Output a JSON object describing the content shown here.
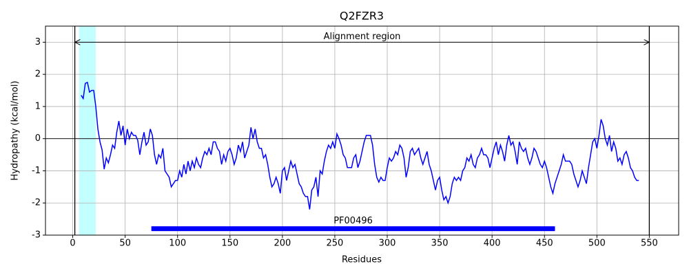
{
  "chart_data": {
    "type": "line",
    "title": "Q2FZR3",
    "xlabel": "Residues",
    "ylabel": "Hydropathy (kcal/mol)",
    "x": [
      8,
      10,
      12,
      14,
      16,
      18,
      20,
      22,
      24,
      26,
      28,
      30,
      32,
      34,
      36,
      38,
      40,
      42,
      44,
      46,
      48,
      50,
      52,
      54,
      56,
      58,
      60,
      62,
      64,
      66,
      68,
      70,
      72,
      74,
      76,
      78,
      80,
      82,
      84,
      86,
      88,
      90,
      92,
      94,
      96,
      98,
      100,
      102,
      104,
      106,
      108,
      110,
      112,
      114,
      116,
      118,
      120,
      122,
      124,
      126,
      128,
      130,
      132,
      134,
      136,
      138,
      140,
      142,
      144,
      146,
      148,
      150,
      152,
      154,
      156,
      158,
      160,
      162,
      164,
      166,
      168,
      170,
      172,
      174,
      176,
      178,
      180,
      182,
      184,
      186,
      188,
      190,
      192,
      194,
      196,
      198,
      200,
      202,
      204,
      206,
      208,
      210,
      212,
      214,
      216,
      218,
      220,
      222,
      224,
      226,
      228,
      230,
      232,
      234,
      236,
      238,
      240,
      242,
      244,
      246,
      248,
      250,
      252,
      254,
      256,
      258,
      260,
      262,
      264,
      266,
      268,
      270,
      272,
      274,
      276,
      278,
      280,
      282,
      284,
      286,
      288,
      290,
      292,
      294,
      296,
      298,
      300,
      302,
      304,
      306,
      308,
      310,
      312,
      314,
      316,
      318,
      320,
      322,
      324,
      326,
      328,
      330,
      332,
      334,
      336,
      338,
      340,
      342,
      344,
      346,
      348,
      350,
      352,
      354,
      356,
      358,
      360,
      362,
      364,
      366,
      368,
      370,
      372,
      374,
      376,
      378,
      380,
      382,
      384,
      386,
      388,
      390,
      392,
      394,
      396,
      398,
      400,
      402,
      404,
      406,
      408,
      410,
      412,
      414,
      416,
      418,
      420,
      422,
      424,
      426,
      428,
      430,
      432,
      434,
      436,
      438,
      440,
      442,
      444,
      446,
      448,
      450,
      452,
      454,
      456,
      458,
      460,
      462,
      464,
      466,
      468,
      470,
      472,
      474,
      476,
      478,
      480,
      482,
      484,
      486,
      488,
      490,
      492,
      494,
      496,
      498,
      500,
      502,
      504,
      506,
      508,
      510,
      512,
      514,
      516,
      518,
      520,
      522,
      524,
      526,
      528,
      530,
      532,
      534,
      536,
      538,
      540
    ],
    "values": [
      1.35,
      1.25,
      1.72,
      1.75,
      1.45,
      1.5,
      1.5,
      1.0,
      0.3,
      -0.1,
      -0.35,
      -0.95,
      -0.6,
      -0.75,
      -0.5,
      -0.2,
      -0.3,
      0.2,
      0.55,
      0.1,
      0.4,
      -0.2,
      0.3,
      0.0,
      0.2,
      0.1,
      0.1,
      -0.05,
      -0.5,
      -0.1,
      0.2,
      -0.2,
      -0.1,
      0.3,
      0.1,
      -0.5,
      -0.8,
      -0.5,
      -0.6,
      -0.3,
      -1.0,
      -1.1,
      -1.2,
      -1.5,
      -1.4,
      -1.3,
      -1.3,
      -1.0,
      -1.2,
      -0.8,
      -1.1,
      -0.7,
      -1.0,
      -0.7,
      -0.9,
      -0.6,
      -0.8,
      -0.9,
      -0.6,
      -0.4,
      -0.5,
      -0.3,
      -0.5,
      -0.1,
      -0.1,
      -0.3,
      -0.4,
      -0.8,
      -0.5,
      -0.7,
      -0.4,
      -0.3,
      -0.5,
      -0.8,
      -0.6,
      -0.2,
      -0.4,
      -0.1,
      -0.6,
      -0.4,
      -0.2,
      0.35,
      0.0,
      0.3,
      -0.1,
      -0.3,
      -0.3,
      -0.6,
      -0.5,
      -0.8,
      -1.2,
      -1.5,
      -1.4,
      -1.2,
      -1.4,
      -1.7,
      -1.0,
      -0.9,
      -1.3,
      -1.0,
      -0.7,
      -0.9,
      -0.8,
      -1.1,
      -1.4,
      -1.5,
      -1.7,
      -1.8,
      -1.8,
      -2.2,
      -1.6,
      -1.5,
      -1.2,
      -1.8,
      -1.0,
      -1.1,
      -0.7,
      -0.4,
      -0.2,
      -0.3,
      -0.1,
      -0.3,
      0.15,
      0.0,
      -0.2,
      -0.5,
      -0.6,
      -0.9,
      -0.9,
      -0.9,
      -0.6,
      -0.5,
      -0.9,
      -0.7,
      -0.4,
      -0.1,
      0.1,
      0.1,
      0.1,
      -0.2,
      -0.8,
      -1.2,
      -1.35,
      -1.2,
      -1.3,
      -1.3,
      -0.9,
      -0.6,
      -0.7,
      -0.6,
      -0.4,
      -0.5,
      -0.2,
      -0.3,
      -0.6,
      -1.2,
      -0.9,
      -0.4,
      -0.3,
      -0.5,
      -0.4,
      -0.3,
      -0.6,
      -0.8,
      -0.6,
      -0.4,
      -0.8,
      -1.0,
      -1.3,
      -1.6,
      -1.3,
      -1.2,
      -1.6,
      -1.9,
      -1.8,
      -2.0,
      -1.8,
      -1.4,
      -1.2,
      -1.3,
      -1.2,
      -1.3,
      -1.0,
      -0.9,
      -0.6,
      -0.7,
      -0.5,
      -0.8,
      -0.9,
      -0.6,
      -0.5,
      -0.3,
      -0.5,
      -0.5,
      -0.6,
      -0.9,
      -0.6,
      -0.3,
      -0.1,
      -0.5,
      -0.2,
      -0.4,
      -0.7,
      -0.2,
      0.1,
      -0.2,
      -0.1,
      -0.4,
      -0.8,
      -0.1,
      -0.3,
      -0.4,
      -0.3,
      -0.6,
      -0.8,
      -0.6,
      -0.3,
      -0.4,
      -0.6,
      -0.8,
      -0.9,
      -0.7,
      -0.9,
      -1.2,
      -1.5,
      -1.7,
      -1.4,
      -1.2,
      -1.0,
      -0.8,
      -0.5,
      -0.7,
      -0.7,
      -0.7,
      -0.8,
      -1.1,
      -1.3,
      -1.5,
      -1.3,
      -1.0,
      -1.2,
      -1.4,
      -0.9,
      -0.5,
      -0.1,
      0.0,
      -0.3,
      0.1,
      0.6,
      0.4,
      0.0,
      -0.2,
      0.1,
      -0.4,
      -0.1,
      -0.3,
      -0.7,
      -0.6,
      -0.8,
      -0.5,
      -0.4,
      -0.6,
      -0.9,
      -1.0,
      -1.2,
      -1.3,
      -1.3
    ],
    "color": "#0000ff",
    "xlim": [
      -26,
      578
    ],
    "ylim": [
      -3,
      3.5
    ],
    "xticks": [
      0,
      50,
      100,
      150,
      200,
      250,
      300,
      350,
      400,
      450,
      500,
      550
    ],
    "yticks": [
      -3,
      -2,
      -1,
      0,
      1,
      2,
      3
    ],
    "grid": true,
    "span": [
      6,
      22
    ],
    "span_color": "#c4ffff",
    "vlines": [
      2,
      550
    ],
    "hline": 0,
    "arrow": {
      "start": 2,
      "end": 550,
      "y": 3,
      "label": "Alignment region"
    },
    "domain": {
      "label": "PF00496",
      "start": 75,
      "end": 460,
      "y": -2.8,
      "color": "#0000ff"
    }
  }
}
